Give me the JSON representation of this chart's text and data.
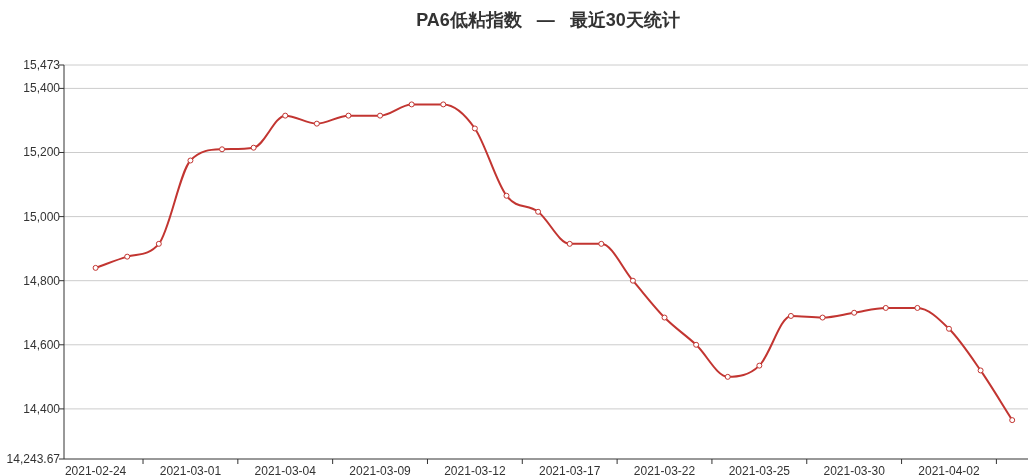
{
  "chart_data": {
    "type": "line",
    "title": "PA6低粘指数   —   最近30天统计",
    "categories": [
      "2021-02-24",
      null,
      null,
      "2021-03-01",
      null,
      null,
      "2021-03-04",
      null,
      null,
      "2021-03-09",
      null,
      null,
      "2021-03-12",
      null,
      null,
      "2021-03-17",
      null,
      null,
      "2021-03-22",
      null,
      null,
      "2021-03-25",
      null,
      null,
      "2021-03-30",
      null,
      null,
      "2021-04-02",
      null,
      null
    ],
    "series": [
      {
        "color": "#c23531",
        "values": [
          14840,
          14875,
          14915,
          15175,
          15210,
          15215,
          15315,
          15290,
          15315,
          15315,
          15350,
          15350,
          15275,
          15065,
          15015,
          14915,
          14915,
          14800,
          14685,
          14600,
          14500,
          14535,
          14690,
          14685,
          14700,
          14715,
          14715,
          14650,
          14520,
          14365
        ]
      }
    ],
    "ylim": [
      14243.67,
      15473
    ],
    "yticks": [
      {
        "value": 14243.67,
        "label": "14,243.67"
      },
      {
        "value": 14400,
        "label": "14,400"
      },
      {
        "value": 14600,
        "label": "14,600"
      },
      {
        "value": 14800,
        "label": "14,800"
      },
      {
        "value": 15000,
        "label": "15,000"
      },
      {
        "value": 15200,
        "label": "15,200"
      },
      {
        "value": 15400,
        "label": "15,400"
      },
      {
        "value": 15473,
        "label": "15,473"
      }
    ],
    "grid": "y",
    "marker": "circle",
    "line_style": "solid"
  }
}
